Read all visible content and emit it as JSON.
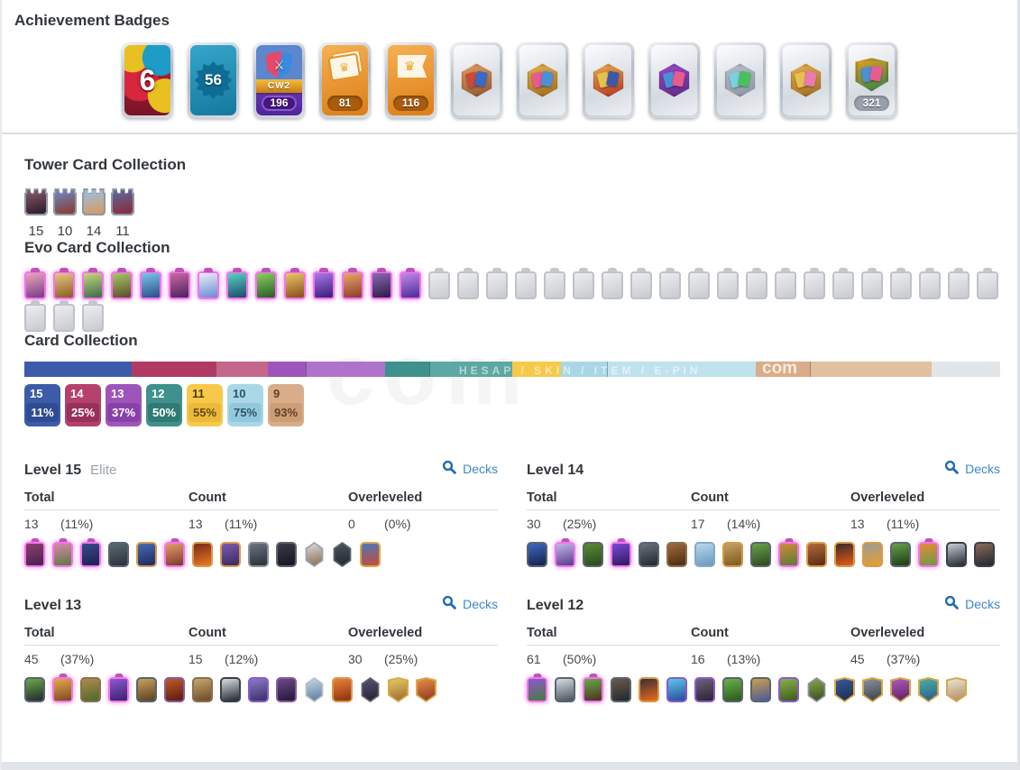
{
  "strings": {
    "decks": "Decks",
    "total": "Total",
    "count": "Count",
    "overleveled": "Overleveled"
  },
  "watermark": {
    "bar_text": "HESAP / SKIN / ITEM / E-PIN",
    "logo": "com",
    "ghost": "com"
  },
  "achievement": {
    "title": "Achievement Badges",
    "badges": [
      {
        "id": "balloons-6",
        "style": "balloons",
        "value": "6"
      },
      {
        "id": "star-56",
        "style": "star",
        "value": "56"
      },
      {
        "id": "clan-wars-196",
        "style": "cw2",
        "ribbon": "CW2",
        "value": "196"
      },
      {
        "id": "cards-81",
        "style": "orange",
        "icon": "cards",
        "value": "81"
      },
      {
        "id": "crown-flag-116",
        "style": "orange",
        "icon": "flag",
        "value": "116"
      },
      {
        "id": "locked-skull-emblem",
        "style": "silver",
        "emblem": [
          "#e8a060",
          "#8a5230",
          "#c84a3a",
          "#3a6ac8"
        ]
      },
      {
        "id": "locked-cards-emblem",
        "style": "silver",
        "emblem": [
          "#e8b050",
          "#9a6a20",
          "#e85a90",
          "#4a90d8"
        ]
      },
      {
        "id": "locked-crowns-emblem",
        "style": "silver",
        "emblem": [
          "#e8b050",
          "#b03020",
          "#e8c050",
          "#3a5aa8"
        ]
      },
      {
        "id": "locked-purple-card-emblem",
        "style": "silver",
        "emblem": [
          "#9a4ad0",
          "#5a2a80",
          "#4a90d8",
          "#e85a90"
        ]
      },
      {
        "id": "locked-upgrade-emblem",
        "style": "silver",
        "emblem": [
          "#b8c0cc",
          "#8a92a0",
          "#7ad0e0",
          "#4ac05a"
        ]
      },
      {
        "id": "locked-medal-emblem",
        "style": "silver",
        "emblem": [
          "#e8b050",
          "#9a6a20",
          "#e8c050",
          "#e87ab0"
        ]
      },
      {
        "id": "collection-321",
        "style": "silver",
        "pill": "gray",
        "value": "321",
        "emblem": [
          "#e8a020",
          "#2a8050",
          "#4a90d8",
          "#e85a90"
        ]
      }
    ]
  },
  "tower": {
    "title": "Tower Card Collection",
    "cards": [
      {
        "name": "tower-card-1",
        "level": "15",
        "c1": "#8a5a6a",
        "c2": "#2a1a28"
      },
      {
        "name": "tower-card-2",
        "level": "10",
        "c1": "#6a8ac8",
        "c2": "#8a3a2a"
      },
      {
        "name": "tower-card-3",
        "level": "14",
        "c1": "#9ac0e8",
        "c2": "#d89a5a"
      },
      {
        "name": "tower-card-4",
        "level": "11",
        "c1": "#5a6a9a",
        "c2": "#8a2a3a"
      }
    ]
  },
  "evo": {
    "title": "Evo Card Collection",
    "unlocked": [
      [
        "#e8a8b8",
        "#7a3a8a"
      ],
      [
        "#e8c888",
        "#8a5a20"
      ],
      [
        "#c8d87a",
        "#3a6a4a"
      ],
      [
        "#a8c868",
        "#5a4a2a"
      ],
      [
        "#7ac8e8",
        "#2a4a8a"
      ],
      [
        "#c86a9a",
        "#4a2060"
      ],
      [
        "#e8f0f8",
        "#6a8ad0"
      ],
      [
        "#5ad0c0",
        "#1a4a6a"
      ],
      [
        "#8ad060",
        "#2a5a2a"
      ],
      [
        "#e8c868",
        "#8a4a1a"
      ],
      [
        "#a87ae8",
        "#3a1a7a"
      ],
      [
        "#e8a86a",
        "#8a3a2a"
      ],
      [
        "#8a6ab0",
        "#2a1a4a"
      ],
      [
        "#c08ae8",
        "#4a2a9a"
      ]
    ],
    "locked_count": 23
  },
  "collection": {
    "title": "Card Collection",
    "chart_data": {
      "type": "bar",
      "stacked": true,
      "title": "Card Collection level distribution",
      "segments": [
        {
          "level": "15",
          "pct": 11,
          "color": "#3c5caa",
          "light": "#3c5caa",
          "split": 1
        },
        {
          "level": "14",
          "pct": 14,
          "color": "#b23a62",
          "light": "#c4678d",
          "split": 0.62
        },
        {
          "level": "13",
          "pct": 12,
          "color": "#9e55bb",
          "light": "#b073cc",
          "split": 0.33
        },
        {
          "level": "12",
          "pct": 13,
          "color": "#3e918c",
          "light": "#5da8a2",
          "split": 0.35
        },
        {
          "level": "11",
          "pct": 5,
          "color": "#f7c94b",
          "light": "#f7c94b",
          "split": 1
        },
        {
          "level": "10",
          "pct": 20,
          "color": "#a9d7e6",
          "light": "#bfe2ee",
          "split": 0.24
        },
        {
          "level": "9",
          "pct": 18,
          "color": "#d9ad89",
          "light": "#e2bf9f",
          "split": 0.31
        },
        {
          "level": "below",
          "pct": 7,
          "color": "#e3e6e9",
          "light": "#e3e6e9",
          "split": 1
        }
      ]
    },
    "legend": [
      {
        "level": "15",
        "pct": "11%",
        "bg": "#3c5caa",
        "pill": "#2f4b93",
        "fg": "#ffffff",
        "pfg": "#ffffff"
      },
      {
        "level": "14",
        "pct": "25%",
        "bg": "#b4416b",
        "pill": "#97305a",
        "fg": "#ffffff",
        "pfg": "#ffffff"
      },
      {
        "level": "13",
        "pct": "37%",
        "bg": "#9e55bb",
        "pill": "#8741a6",
        "fg": "#ffffff",
        "pfg": "#ffffff"
      },
      {
        "level": "12",
        "pct": "50%",
        "bg": "#3e918c",
        "pill": "#317a74",
        "fg": "#ffffff",
        "pfg": "#ffffff"
      },
      {
        "level": "11",
        "pct": "55%",
        "bg": "#f7c94b",
        "pill": "#edb93a",
        "fg": "#4a3c12",
        "pfg": "#5f4d17"
      },
      {
        "level": "10",
        "pct": "75%",
        "bg": "#a9d7e6",
        "pill": "#92c8dc",
        "fg": "#2f5464",
        "pfg": "#2f5464"
      },
      {
        "level": "9",
        "pct": "93%",
        "bg": "#d9ad89",
        "pill": "#cd9d74",
        "fg": "#5f422c",
        "pfg": "#5f422c"
      }
    ]
  },
  "levels": [
    {
      "id": "15",
      "title": "Level 15",
      "subtitle": "Elite",
      "total": "13",
      "total_pct": "(11%)",
      "count": "13",
      "count_pct": "(11%)",
      "over": "0",
      "over_pct": "(0%)",
      "cards": [
        [
          "e",
          "",
          "#8a3f6e",
          "#4a2050"
        ],
        [
          "e",
          "",
          "#d88ab0",
          "#5a7a3a"
        ],
        [
          "e",
          "",
          "#3a4a8a",
          "#1a2050"
        ],
        [
          "r",
          "#5a6470",
          "#5a6a72",
          "#2a3038"
        ],
        [
          "r",
          "#d89a4a",
          "#4a6ab0",
          "#1a2a60"
        ],
        [
          "e",
          "",
          "#e89a6a",
          "#7a3a2a"
        ],
        [
          "r",
          "#d89a4a",
          "#7a2a18",
          "#e87a20"
        ],
        [
          "r",
          "#d89a4a",
          "#7a5ab0",
          "#3a2a60"
        ],
        [
          "r",
          "#8a92a0",
          "#6a7280",
          "#2a3038"
        ],
        [
          "r",
          "#5a6470",
          "#3a3a4a",
          "#15151f"
        ],
        [
          "h",
          "#9aa2ae",
          "#d8dce2",
          "#8a6a4a"
        ],
        [
          "h",
          "#5a6470",
          "#4a525e",
          "#23282f"
        ],
        [
          "r",
          "#d8a84a",
          "#4a7ab8",
          "#c84a3a"
        ]
      ]
    },
    {
      "id": "14",
      "title": "Level 14",
      "subtitle": "",
      "total": "30",
      "total_pct": "(25%)",
      "count": "17",
      "count_pct": "(14%)",
      "over": "13",
      "over_pct": "(11%)",
      "cards": [
        [
          "r",
          "#5a6470",
          "#3a6ac0",
          "#16204a"
        ],
        [
          "e",
          "",
          "#c0b8e8",
          "#5a3a8a"
        ],
        [
          "r",
          "#5a6470",
          "#5a8a3a",
          "#2a4a1a"
        ],
        [
          "e",
          "",
          "#7a4ad0",
          "#2a1a60"
        ],
        [
          "r",
          "#5a6470",
          "#6a727e",
          "#23282f"
        ],
        [
          "r",
          "#8a7050",
          "#a06a3a",
          "#4a2a10"
        ],
        [
          "r",
          "#8aa8c0",
          "#b8d8ee",
          "#6a98c0"
        ],
        [
          "r",
          "#d89a4a",
          "#c8a060",
          "#7a5a20"
        ],
        [
          "r",
          "#5a6470",
          "#6aa04a",
          "#2a4a1a"
        ],
        [
          "e",
          "",
          "#d08a3a",
          "#5a7a3a"
        ],
        [
          "r",
          "#d89a4a",
          "#b06a3a",
          "#5a2a10"
        ],
        [
          "r",
          "#d89a4a",
          "#3a2a28",
          "#e85a18"
        ],
        [
          "r",
          "#d89a4a",
          "#9a9a98",
          "#e8a02a"
        ],
        [
          "r",
          "#5a6470",
          "#6aa04a",
          "#1a3a10"
        ],
        [
          "e",
          "",
          "#e88a3a",
          "#6a9a4a"
        ],
        [
          "r",
          "#3a4048",
          "#c8ccd4",
          "#23282f"
        ],
        [
          "r",
          "#3a4048",
          "#8a6a5a",
          "#23282f"
        ]
      ]
    },
    {
      "id": "13",
      "title": "Level 13",
      "subtitle": "",
      "total": "45",
      "total_pct": "(37%)",
      "count": "15",
      "count_pct": "(12%)",
      "over": "30",
      "over_pct": "(25%)",
      "cards": [
        [
          "r",
          "#5a6470",
          "#6aa84a",
          "#23282f"
        ],
        [
          "e",
          "",
          "#e8a84a",
          "#7a4a20"
        ],
        [
          "r",
          "#8a7050",
          "#b08a4a",
          "#4a6a2a"
        ],
        [
          "e",
          "",
          "#8a5ad0",
          "#3a2070"
        ],
        [
          "r",
          "#5a6470",
          "#c8a05a",
          "#5a4020"
        ],
        [
          "r",
          "#8a5a9a",
          "#c05a2a",
          "#5a1a10"
        ],
        [
          "r",
          "#8a7050",
          "#c8a86a",
          "#6a4a2a"
        ],
        [
          "r",
          "#3a4048",
          "#d8dce2",
          "#23282f"
        ],
        [
          "r",
          "#8a5ad0",
          "#8a7ac8",
          "#3a3068"
        ],
        [
          "r",
          "#8a5a9a",
          "#6a4a8a",
          "#201838"
        ],
        [
          "h",
          "#b8bec8",
          "#c8d8e8",
          "#5a7a9a"
        ],
        [
          "r",
          "#d89a4a",
          "#e8823a",
          "#8a3010"
        ],
        [
          "h",
          "#5a6470",
          "#5a5270",
          "#241f33"
        ],
        [
          "s",
          "#d8a84a",
          "#e8c86a",
          "#9a6a2a"
        ],
        [
          "s",
          "#d8a84a",
          "#e88a4a",
          "#8a3a1a"
        ]
      ]
    },
    {
      "id": "12",
      "title": "Level 12",
      "subtitle": "",
      "total": "61",
      "total_pct": "(50%)",
      "count": "16",
      "count_pct": "(13%)",
      "over": "45",
      "over_pct": "(37%)",
      "cards": [
        [
          "e",
          "",
          "#8a5ad0",
          "#4a7a3a"
        ],
        [
          "r",
          "#5a6470",
          "#d8dce2",
          "#4a525e"
        ],
        [
          "e",
          "",
          "#6aa84a",
          "#4a3020"
        ],
        [
          "r",
          "#5a6470",
          "#6a5a4a",
          "#23282f"
        ],
        [
          "r",
          "#d89a4a",
          "#3a3038",
          "#e86a18"
        ],
        [
          "r",
          "#8a5ad0",
          "#5ac8e8",
          "#2a4a9a"
        ],
        [
          "r",
          "#8a5ad0",
          "#6a6278",
          "#2a2433"
        ],
        [
          "r",
          "#5a6470",
          "#6ab04a",
          "#2a5a1a"
        ],
        [
          "r",
          "#5a6470",
          "#c8a04a",
          "#4a5a9a"
        ],
        [
          "r",
          "#8a5ad0",
          "#8ab04a",
          "#3a5a1a"
        ],
        [
          "h",
          "#8a92a0",
          "#8aa84a",
          "#3a4a20"
        ],
        [
          "s",
          "#d8a84a",
          "#3a5a9a",
          "#1a2a50"
        ],
        [
          "s",
          "#d8a84a",
          "#8a92a0",
          "#3a4048"
        ],
        [
          "s",
          "#d8a84a",
          "#b05ac0",
          "#5a2060"
        ],
        [
          "s",
          "#d8a84a",
          "#4ab0a0",
          "#2a5a8a"
        ],
        [
          "s",
          "#d8a84a",
          "#e8e4da",
          "#b08a5a"
        ]
      ]
    }
  ]
}
